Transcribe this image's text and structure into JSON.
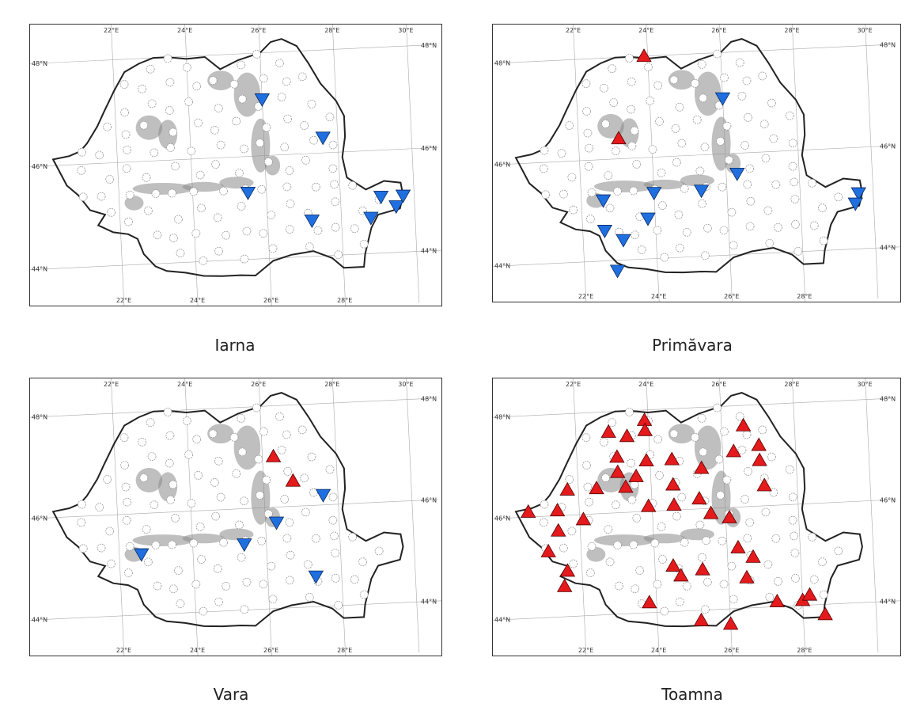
{
  "panels": [
    {
      "caption": "Iarna",
      "lon_labels": [
        "22°E",
        "24°E",
        "26°E",
        "28°E",
        "30°E"
      ],
      "lat_labels": [
        "48°N",
        "46°N",
        "44°N"
      ],
      "markers": [
        {
          "type": "down",
          "lon": 26.0,
          "lat": 47.1
        },
        {
          "type": "down",
          "lon": 27.6,
          "lat": 46.3
        },
        {
          "type": "down",
          "lon": 25.5,
          "lat": 45.3
        },
        {
          "type": "down",
          "lon": 27.2,
          "lat": 44.7
        },
        {
          "type": "down",
          "lon": 28.8,
          "lat": 44.7
        },
        {
          "type": "down",
          "lon": 29.1,
          "lat": 45.1
        },
        {
          "type": "down",
          "lon": 29.5,
          "lat": 44.9
        },
        {
          "type": "down",
          "lon": 29.7,
          "lat": 45.1
        }
      ]
    },
    {
      "caption": "Primăvara",
      "lon_labels": [
        "22°E",
        "24°E",
        "26°E",
        "28°E",
        "30°E"
      ],
      "lat_labels": [
        "48°N",
        "46°N",
        "44°N"
      ],
      "markers": [
        {
          "type": "up",
          "lon": 23.9,
          "lat": 48.0
        },
        {
          "type": "up",
          "lon": 23.1,
          "lat": 46.4
        },
        {
          "type": "down",
          "lon": 26.0,
          "lat": 47.1
        },
        {
          "type": "down",
          "lon": 26.3,
          "lat": 45.6
        },
        {
          "type": "down",
          "lon": 25.3,
          "lat": 45.3
        },
        {
          "type": "down",
          "lon": 24.0,
          "lat": 45.3
        },
        {
          "type": "down",
          "lon": 22.6,
          "lat": 45.2
        },
        {
          "type": "down",
          "lon": 23.8,
          "lat": 44.8
        },
        {
          "type": "down",
          "lon": 22.6,
          "lat": 44.6
        },
        {
          "type": "down",
          "lon": 23.1,
          "lat": 44.4
        },
        {
          "type": "down",
          "lon": 22.9,
          "lat": 43.8
        },
        {
          "type": "down",
          "lon": 29.6,
          "lat": 45.1
        },
        {
          "type": "down",
          "lon": 29.5,
          "lat": 44.9
        }
      ]
    },
    {
      "caption": "Vara",
      "lon_labels": [
        "22°E",
        "24°E",
        "26°E",
        "28°E",
        "30°E"
      ],
      "lat_labels": [
        "48°N",
        "46°N",
        "44°N"
      ],
      "markers": [
        {
          "type": "up",
          "lon": 26.3,
          "lat": 47.0
        },
        {
          "type": "up",
          "lon": 26.8,
          "lat": 46.5
        },
        {
          "type": "down",
          "lon": 27.6,
          "lat": 46.2
        },
        {
          "type": "down",
          "lon": 26.3,
          "lat": 45.7
        },
        {
          "type": "down",
          "lon": 25.4,
          "lat": 45.3
        },
        {
          "type": "down",
          "lon": 22.6,
          "lat": 45.2
        },
        {
          "type": "down",
          "lon": 27.3,
          "lat": 44.6
        }
      ]
    },
    {
      "caption": "Toamna",
      "lon_labels": [
        "22°E",
        "24°E",
        "26°E",
        "28°E",
        "30°E"
      ],
      "lat_labels": [
        "48°N",
        "46°N",
        "44°N"
      ],
      "markers": [
        {
          "type": "up",
          "lon": 23.9,
          "lat": 47.8
        },
        {
          "type": "up",
          "lon": 23.9,
          "lat": 47.6
        },
        {
          "type": "up",
          "lon": 22.9,
          "lat": 47.6
        },
        {
          "type": "up",
          "lon": 23.4,
          "lat": 47.5
        },
        {
          "type": "up",
          "lon": 26.6,
          "lat": 47.6
        },
        {
          "type": "up",
          "lon": 27.0,
          "lat": 47.2
        },
        {
          "type": "up",
          "lon": 26.3,
          "lat": 47.1
        },
        {
          "type": "up",
          "lon": 27.0,
          "lat": 46.9
        },
        {
          "type": "up",
          "lon": 23.1,
          "lat": 47.1
        },
        {
          "type": "up",
          "lon": 23.9,
          "lat": 47.0
        },
        {
          "type": "up",
          "lon": 24.6,
          "lat": 47.0
        },
        {
          "type": "up",
          "lon": 25.4,
          "lat": 46.8
        },
        {
          "type": "up",
          "lon": 23.1,
          "lat": 46.8
        },
        {
          "type": "up",
          "lon": 23.6,
          "lat": 46.7
        },
        {
          "type": "up",
          "lon": 21.7,
          "lat": 46.5
        },
        {
          "type": "up",
          "lon": 22.5,
          "lat": 46.5
        },
        {
          "type": "up",
          "lon": 23.3,
          "lat": 46.5
        },
        {
          "type": "up",
          "lon": 24.6,
          "lat": 46.5
        },
        {
          "type": "up",
          "lon": 27.1,
          "lat": 46.4
        },
        {
          "type": "up",
          "lon": 25.3,
          "lat": 46.2
        },
        {
          "type": "up",
          "lon": 24.6,
          "lat": 46.1
        },
        {
          "type": "up",
          "lon": 23.9,
          "lat": 46.1
        },
        {
          "type": "up",
          "lon": 21.4,
          "lat": 46.1
        },
        {
          "type": "up",
          "lon": 20.6,
          "lat": 46.1
        },
        {
          "type": "up",
          "lon": 25.6,
          "lat": 45.9
        },
        {
          "type": "up",
          "lon": 26.1,
          "lat": 45.8
        },
        {
          "type": "up",
          "lon": 22.1,
          "lat": 45.9
        },
        {
          "type": "up",
          "lon": 21.4,
          "lat": 45.7
        },
        {
          "type": "up",
          "lon": 21.1,
          "lat": 45.3
        },
        {
          "type": "up",
          "lon": 26.3,
          "lat": 45.2
        },
        {
          "type": "up",
          "lon": 26.7,
          "lat": 45.0
        },
        {
          "type": "up",
          "lon": 21.6,
          "lat": 44.9
        },
        {
          "type": "up",
          "lon": 24.5,
          "lat": 44.9
        },
        {
          "type": "up",
          "lon": 24.7,
          "lat": 44.7
        },
        {
          "type": "up",
          "lon": 25.3,
          "lat": 44.8
        },
        {
          "type": "up",
          "lon": 26.5,
          "lat": 44.6
        },
        {
          "type": "up",
          "lon": 21.5,
          "lat": 44.6
        },
        {
          "type": "up",
          "lon": 23.8,
          "lat": 44.2
        },
        {
          "type": "up",
          "lon": 27.3,
          "lat": 44.1
        },
        {
          "type": "up",
          "lon": 28.0,
          "lat": 44.1
        },
        {
          "type": "up",
          "lon": 28.2,
          "lat": 44.2
        },
        {
          "type": "up",
          "lon": 25.2,
          "lat": 43.8
        },
        {
          "type": "up",
          "lon": 26.0,
          "lat": 43.7
        },
        {
          "type": "up",
          "lon": 28.6,
          "lat": 43.8
        }
      ]
    }
  ],
  "colors": {
    "up_fill": "#e41a1c",
    "down_fill": "#1f6fe0",
    "border": "#222222",
    "station": "#999999",
    "relief": "#8a8a8a"
  }
}
